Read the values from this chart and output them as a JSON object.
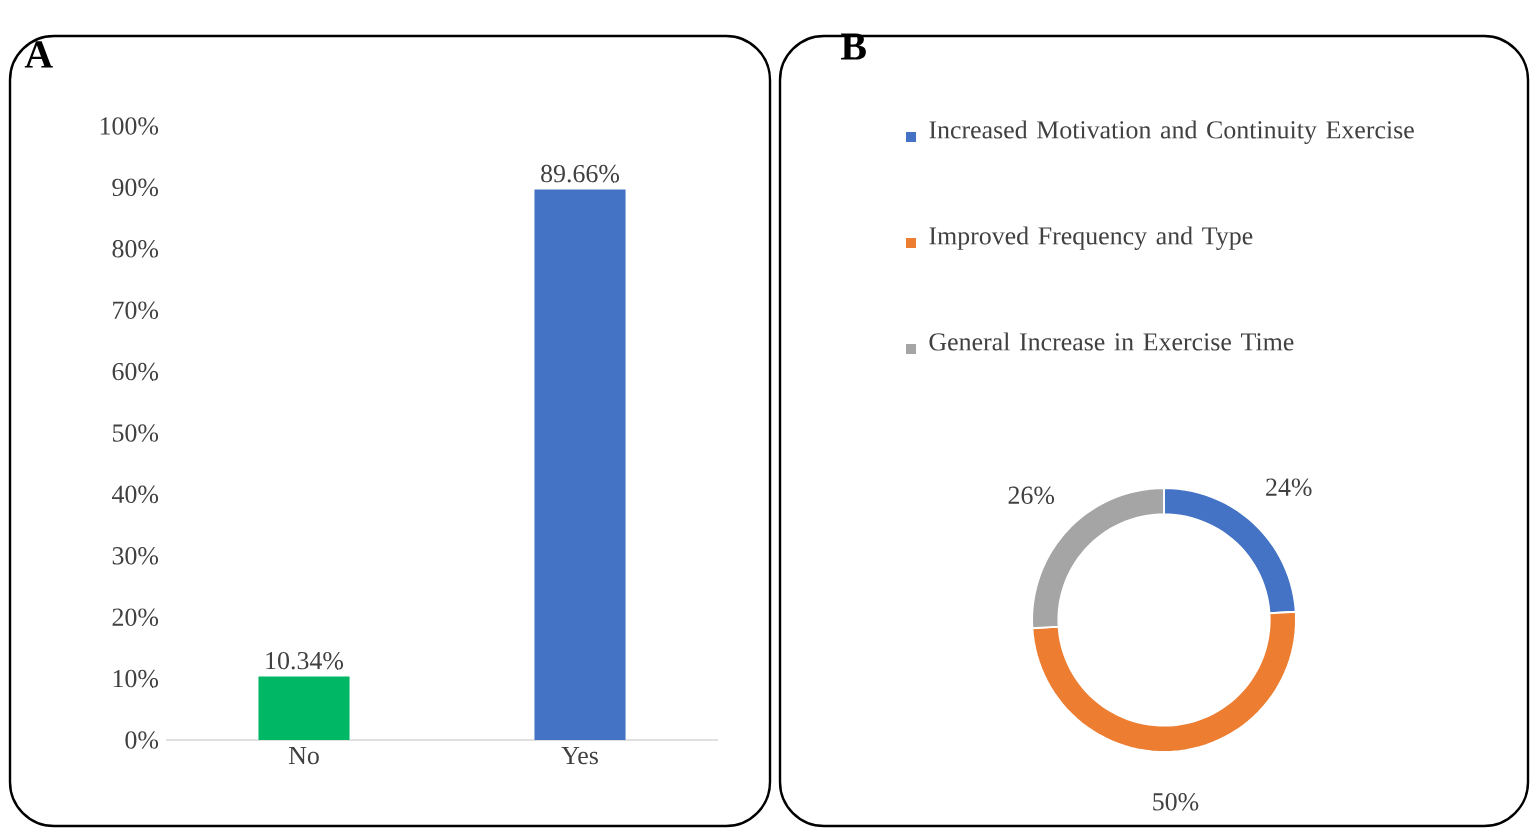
{
  "chart_data": [
    {
      "type": "bar",
      "title": "A",
      "categories": [
        "No",
        "Yes"
      ],
      "values": [
        10.34,
        89.66
      ],
      "colors": [
        "#00b765",
        "#4472c4"
      ],
      "ylim": [
        0,
        100
      ],
      "yticks": [
        {
          "value": 0,
          "label": "0%"
        },
        {
          "value": 10,
          "label": "10%"
        },
        {
          "value": 20,
          "label": "20%"
        },
        {
          "value": 30,
          "label": "30%"
        },
        {
          "value": 40,
          "label": "40%"
        },
        {
          "value": 50,
          "label": "50%"
        },
        {
          "value": 60,
          "label": "60%"
        },
        {
          "value": 70,
          "label": "70%"
        },
        {
          "value": 80,
          "label": "80%"
        },
        {
          "value": 90,
          "label": "90%"
        },
        {
          "value": 100,
          "label": "100%"
        }
      ],
      "value_labels": [
        "10.34%",
        "89.66%"
      ]
    },
    {
      "type": "donut",
      "title": "B",
      "categories": [
        "Increased Motivation and Continuity Exercise",
        "Improved Frequency and Type",
        "General Increase in Exercise Time"
      ],
      "values": [
        24,
        50,
        26
      ],
      "colors": [
        "#4472c4",
        "#ed7d31",
        "#a5a5a5"
      ],
      "value_labels": [
        "24%",
        "50%",
        "26%"
      ],
      "legend": "top"
    }
  ]
}
